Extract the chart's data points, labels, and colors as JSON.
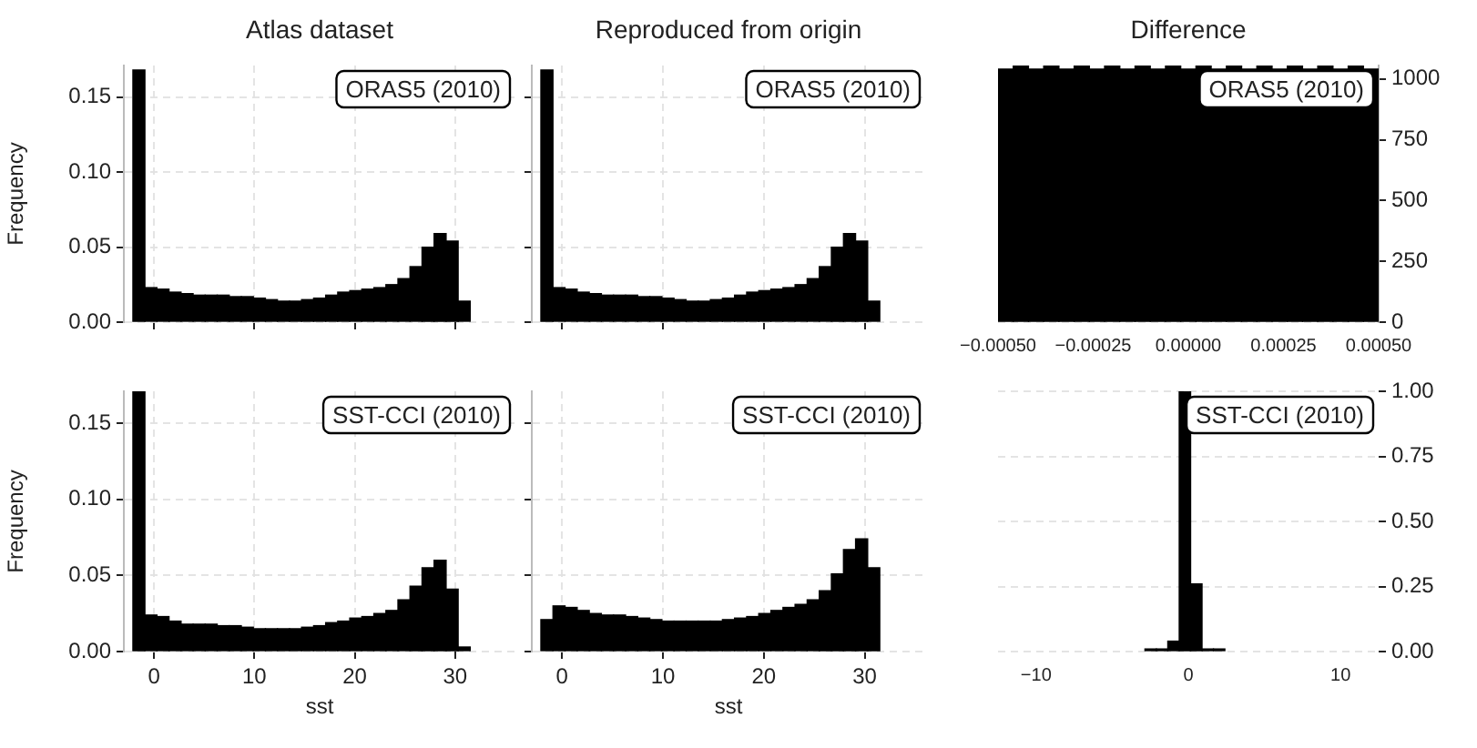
{
  "chart_data": [
    {
      "type": "histogram",
      "title": "Atlas dataset",
      "ylabel": "Frequency",
      "annotations": [
        "ORAS5 (2010)"
      ],
      "bins": [
        -2.1,
        -0.9,
        0.3,
        1.5,
        2.7,
        3.9,
        5.1,
        6.3,
        7.5,
        8.7,
        9.9,
        11.1,
        12.3,
        13.5,
        14.7,
        15.9,
        17.1,
        18.3,
        19.5,
        20.7,
        21.9,
        23.1,
        24.3,
        25.5,
        26.7,
        27.9,
        29.1,
        30.3,
        31.5
      ],
      "series": [
        {
          "color": "#000000",
          "values": [
            0.168,
            0.023,
            0.022,
            0.02,
            0.019,
            0.018,
            0.018,
            0.018,
            0.017,
            0.017,
            0.016,
            0.015,
            0.014,
            0.014,
            0.015,
            0.016,
            0.018,
            0.02,
            0.021,
            0.022,
            0.023,
            0.025,
            0.029,
            0.037,
            0.05,
            0.059,
            0.054,
            0.014
          ]
        }
      ],
      "xlim": [
        -3,
        36
      ],
      "xticks": [
        {
          "value": 0,
          "label": null
        },
        {
          "value": 10,
          "label": null
        },
        {
          "value": 20,
          "label": null
        },
        {
          "value": 30,
          "label": null
        }
      ],
      "ylim": [
        0,
        0.171
      ],
      "yticks": [
        {
          "value": 0,
          "label": "0.00"
        },
        {
          "value": 0.05,
          "label": "0.05"
        },
        {
          "value": 0.1,
          "label": "0.10"
        },
        {
          "value": 0.15,
          "label": "0.15"
        }
      ],
      "grid": true,
      "tick_labels": "y"
    },
    {
      "type": "histogram",
      "title": "Reproduced from origin",
      "annotations": [
        "ORAS5 (2010)"
      ],
      "bins": [
        -2.1,
        -0.9,
        0.3,
        1.5,
        2.7,
        3.9,
        5.1,
        6.3,
        7.5,
        8.7,
        9.9,
        11.1,
        12.3,
        13.5,
        14.7,
        15.9,
        17.1,
        18.3,
        19.5,
        20.7,
        21.9,
        23.1,
        24.3,
        25.5,
        26.7,
        27.9,
        29.1,
        30.3,
        31.5
      ],
      "series": [
        {
          "color": "#000000",
          "values": [
            0.168,
            0.023,
            0.022,
            0.02,
            0.019,
            0.018,
            0.018,
            0.018,
            0.017,
            0.017,
            0.016,
            0.015,
            0.014,
            0.014,
            0.015,
            0.016,
            0.018,
            0.02,
            0.021,
            0.022,
            0.023,
            0.025,
            0.029,
            0.037,
            0.05,
            0.059,
            0.054,
            0.014
          ]
        }
      ],
      "xlim": [
        -3,
        36
      ],
      "xticks": [
        {
          "value": 0,
          "label": null
        },
        {
          "value": 10,
          "label": null
        },
        {
          "value": 20,
          "label": null
        },
        {
          "value": 30,
          "label": null
        }
      ],
      "ylim": [
        0,
        0.171
      ],
      "yticks": [
        {
          "value": 0,
          "label": null
        },
        {
          "value": 0.05,
          "label": null
        },
        {
          "value": 0.1,
          "label": null
        },
        {
          "value": 0.15,
          "label": null
        }
      ],
      "grid": true,
      "tick_labels": false
    },
    {
      "type": "histogram",
      "title": "Difference",
      "annotations": [
        "ORAS5 (2010)"
      ],
      "bins": [
        -0.0005,
        -0.00046,
        -0.00042,
        -0.00038,
        -0.00034,
        -0.0003,
        -0.00026,
        -0.00022,
        -0.00018,
        -0.00014,
        -0.0001,
        -6e-05,
        -2e-05,
        2e-05,
        6e-05,
        0.0001,
        0.00014,
        0.00018,
        0.00022,
        0.00026,
        0.0003,
        0.00034,
        0.00038,
        0.00042,
        0.00046,
        0.0005
      ],
      "series": [
        {
          "color": "#000000",
          "axis": "y2",
          "values": [
            1040,
            1055,
            1040,
            1055,
            1040,
            1055,
            1040,
            1055,
            1040,
            1055,
            1040,
            1055,
            1040,
            1055,
            1040,
            1055,
            1040,
            1055,
            1040,
            1055,
            1040,
            1055,
            1040,
            1055,
            1040
          ]
        }
      ],
      "xlim": [
        -0.0005,
        0.0005
      ],
      "xticks": [
        {
          "value": -0.0005,
          "label": "−0.00050"
        },
        {
          "value": -0.00025,
          "label": "−0.00025"
        },
        {
          "value": 0,
          "label": "0.00000"
        },
        {
          "value": 0.00025,
          "label": "0.00025"
        },
        {
          "value": 0.0005,
          "label": "0.00050"
        }
      ],
      "y2lim": [
        0,
        1055
      ],
      "y2ticks": [
        0,
        250,
        500,
        750,
        1000
      ],
      "grid": "y"
    },
    {
      "type": "histogram",
      "ylabel": "Frequency",
      "xlabel": "sst",
      "annotations": [
        "SST-CCI (2010)"
      ],
      "bins": [
        -2.1,
        -0.9,
        0.3,
        1.5,
        2.7,
        3.9,
        5.1,
        6.3,
        7.5,
        8.7,
        9.9,
        11.1,
        12.3,
        13.5,
        14.7,
        15.9,
        17.1,
        18.3,
        19.5,
        20.7,
        21.9,
        23.1,
        24.3,
        25.5,
        26.7,
        27.9,
        29.1,
        30.3,
        31.5
      ],
      "series": [
        {
          "color": "#000000",
          "values": [
            0.171,
            0.024,
            0.023,
            0.02,
            0.018,
            0.018,
            0.018,
            0.017,
            0.017,
            0.016,
            0.015,
            0.015,
            0.015,
            0.015,
            0.016,
            0.017,
            0.019,
            0.02,
            0.022,
            0.023,
            0.025,
            0.027,
            0.034,
            0.043,
            0.055,
            0.06,
            0.041,
            0.003
          ]
        }
      ],
      "xlim": [
        -3,
        36
      ],
      "xticks": [
        0,
        10,
        20,
        30
      ],
      "ylim": [
        0,
        0.171
      ],
      "yticks": [
        {
          "value": 0,
          "label": "0.00"
        },
        {
          "value": 0.05,
          "label": "0.05"
        },
        {
          "value": 0.1,
          "label": "0.10"
        },
        {
          "value": 0.15,
          "label": "0.15"
        }
      ],
      "grid": true
    },
    {
      "type": "histogram",
      "xlabel": "sst",
      "annotations": [
        "SST-CCI (2010)"
      ],
      "bins": [
        -2.1,
        -0.9,
        0.3,
        1.5,
        2.7,
        3.9,
        5.1,
        6.3,
        7.5,
        8.7,
        9.9,
        11.1,
        12.3,
        13.5,
        14.7,
        15.9,
        17.1,
        18.3,
        19.5,
        20.7,
        21.9,
        23.1,
        24.3,
        25.5,
        26.7,
        27.9,
        29.1,
        30.3,
        31.5
      ],
      "series": [
        {
          "color": "#000000",
          "values": [
            0.021,
            0.03,
            0.029,
            0.027,
            0.025,
            0.024,
            0.024,
            0.023,
            0.022,
            0.021,
            0.02,
            0.02,
            0.02,
            0.02,
            0.02,
            0.021,
            0.022,
            0.023,
            0.025,
            0.027,
            0.029,
            0.031,
            0.034,
            0.04,
            0.051,
            0.067,
            0.074,
            0.055
          ]
        }
      ],
      "xlim": [
        -3,
        36
      ],
      "xticks": [
        0,
        10,
        20,
        30
      ],
      "ylim": [
        0,
        0.171
      ],
      "yticks": [
        {
          "value": 0,
          "label": null
        },
        {
          "value": 0.05,
          "label": null
        },
        {
          "value": 0.1,
          "label": null
        },
        {
          "value": 0.15,
          "label": null
        }
      ],
      "grid": true,
      "tick_labels": "x"
    },
    {
      "type": "histogram",
      "annotations": [
        "SST-CCI (2010)"
      ],
      "bins": [
        -2.85,
        -2.1,
        -1.35,
        -0.6,
        0.15,
        0.9,
        1.65,
        2.4
      ],
      "series": [
        {
          "color": "#000000",
          "axis": "y2",
          "values": [
            0.01,
            0.01,
            0.04,
            1.0,
            0.26,
            0.01,
            0.01
          ]
        }
      ],
      "xlim": [
        -12.5,
        12.5
      ],
      "xticks": [
        {
          "value": -10,
          "label": "−10"
        },
        0,
        10
      ],
      "y2lim": [
        0,
        1.0
      ],
      "y2ticks": [
        {
          "value": 0,
          "label": "0.00"
        },
        {
          "value": 0.25,
          "label": "0.25"
        },
        {
          "value": 0.5,
          "label": "0.50"
        },
        {
          "value": 0.75,
          "label": "0.75"
        },
        {
          "value": 1,
          "label": "1.00"
        }
      ],
      "grid": "y"
    }
  ]
}
